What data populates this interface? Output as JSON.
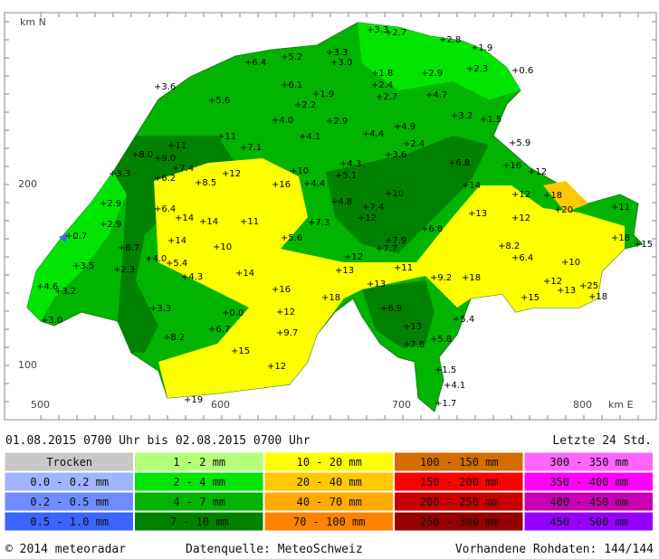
{
  "map": {
    "axis_labels": {
      "north": "km N",
      "east": "km E",
      "y200": "200",
      "y100": "100",
      "x500": "500",
      "x600": "600",
      "x700": "700",
      "x800": "800"
    },
    "stations": [
      "3.3",
      "2.7",
      "2.8",
      "1.9",
      "5.2",
      "3.3",
      "3.0",
      "6.4",
      "0.6",
      "2.3",
      "1.8",
      "2.9",
      "3.6",
      "6.1",
      "2.4",
      "1.9",
      "2.7",
      "4.7",
      "5.6",
      "2.2",
      "4.0",
      "2.9",
      "3.2",
      "1.5",
      "4.9",
      "4.1",
      "4.4",
      "11",
      "2.4",
      "5.9",
      "11",
      "7.1",
      "3.6",
      "8.0",
      "9.0",
      "4.3",
      "6.8",
      "16",
      "7.4",
      "10",
      "5.1",
      "12",
      "3.3",
      "6.2",
      "12",
      "16",
      "4.4",
      "8.5",
      "14",
      "10",
      "12",
      "18",
      "2.9",
      "4.8",
      "7.4",
      "11",
      "6.4",
      "20",
      "13",
      "14",
      "14",
      "11",
      "7.3",
      "12",
      "12",
      "2.9",
      "6.8",
      "0.7",
      "5.6",
      "7.9",
      "14",
      "10",
      "7.7",
      "8.7",
      "8.2",
      "18",
      "15",
      "6.4",
      "4.0",
      "5.4",
      "12",
      "3.5",
      "2.3",
      "11",
      "13",
      "4.3",
      "14",
      "9.2",
      "18",
      "10",
      "12",
      "13",
      "4.6",
      "3.2",
      "16",
      "25",
      "13",
      "18",
      "15",
      "18",
      "3.3",
      "0.0",
      "6.9",
      "12",
      "3.0",
      "5.4",
      "6.7",
      "13",
      "9.7",
      "8.2",
      "7.8",
      "5.8",
      "15",
      "1.5",
      "12",
      "4.1",
      "19",
      "1.7"
    ]
  },
  "header": {
    "period": "01.08.2015 0700 Uhr  bis  02.08.2015 0700 Uhr",
    "span": "Letzte 24 Std."
  },
  "legend": [
    [
      {
        "label": "Trocken",
        "color": "#c8c8c8"
      },
      {
        "label": "0.0 - 0.2 mm",
        "color": "#a0b4ff"
      },
      {
        "label": "0.2 - 0.5 mm",
        "color": "#6e8cff"
      },
      {
        "label": "0.5 - 1.0 mm",
        "color": "#3c64ff"
      }
    ],
    [
      {
        "label": "1 - 2 mm",
        "color": "#b4ff78"
      },
      {
        "label": "2 - 4 mm",
        "color": "#00e600"
      },
      {
        "label": "4 - 7 mm",
        "color": "#00b400"
      },
      {
        "label": "7 - 10 mm",
        "color": "#008200"
      }
    ],
    [
      {
        "label": "10 - 20 mm",
        "color": "#ffff00"
      },
      {
        "label": "20 - 40 mm",
        "color": "#ffc800"
      },
      {
        "label": "40 - 70 mm",
        "color": "#ffaa00"
      },
      {
        "label": "70 - 100 mm",
        "color": "#ff8200"
      }
    ],
    [
      {
        "label": "100 - 150 mm",
        "color": "#d26e00"
      },
      {
        "label": "150 - 200 mm",
        "color": "#ff0000"
      },
      {
        "label": "200 - 250 mm",
        "color": "#c80000"
      },
      {
        "label": "250 - 300 mm",
        "color": "#960000"
      }
    ],
    [
      {
        "label": "300 - 350 mm",
        "color": "#ff64ff"
      },
      {
        "label": "350 - 400 mm",
        "color": "#ff00ff"
      },
      {
        "label": "400 - 450 mm",
        "color": "#c800b4"
      },
      {
        "label": "450 - 500 mm",
        "color": "#9600ff"
      }
    ]
  ],
  "footer": {
    "copyright": "© 2014 meteoradar",
    "source": "Datenquelle: MeteoSchweiz",
    "raw": "Vorhandene Rohdaten: 144/144"
  }
}
